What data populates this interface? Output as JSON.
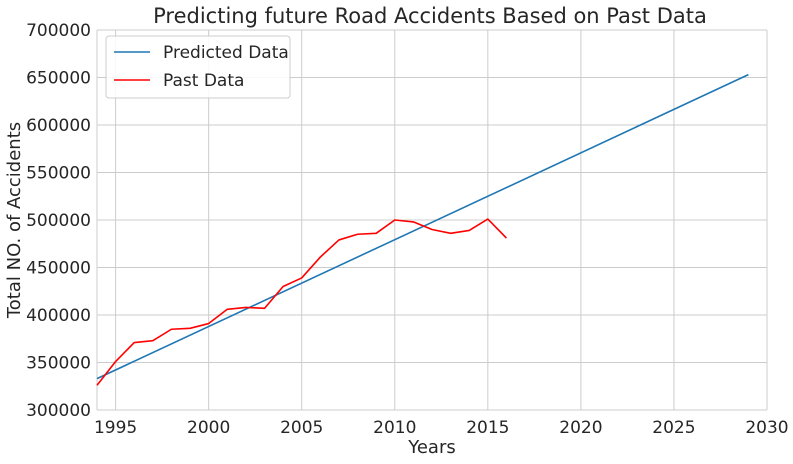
{
  "chart_data": {
    "type": "line",
    "title": "Predicting future Road Accidents Based on Past Data",
    "xlabel": "Years",
    "ylabel": "Total NO. of Accidents",
    "xlim": [
      1994,
      2030
    ],
    "ylim": [
      300000,
      700000
    ],
    "xticks": [
      1995,
      2000,
      2005,
      2010,
      2015,
      2020,
      2025,
      2030
    ],
    "yticks": [
      300000,
      350000,
      400000,
      450000,
      500000,
      550000,
      600000,
      650000,
      700000
    ],
    "grid": true,
    "legend_position": "top-left",
    "series": [
      {
        "name": "Predicted Data",
        "color": "#1f77b4",
        "x": [
          1994,
          2029
        ],
        "y": [
          333000,
          653000
        ]
      },
      {
        "name": "Past Data",
        "color": "#ff0000",
        "x": [
          1994,
          1995,
          1996,
          1997,
          1998,
          1999,
          2000,
          2001,
          2002,
          2003,
          2004,
          2005,
          2006,
          2007,
          2008,
          2009,
          2010,
          2011,
          2012,
          2013,
          2014,
          2015,
          2016
        ],
        "y": [
          326000,
          351000,
          371000,
          373000,
          385000,
          386000,
          391000,
          406000,
          408000,
          407000,
          430000,
          439000,
          461000,
          479000,
          485000,
          486000,
          500000,
          498000,
          490000,
          486000,
          489000,
          501000,
          481000
        ]
      }
    ]
  }
}
